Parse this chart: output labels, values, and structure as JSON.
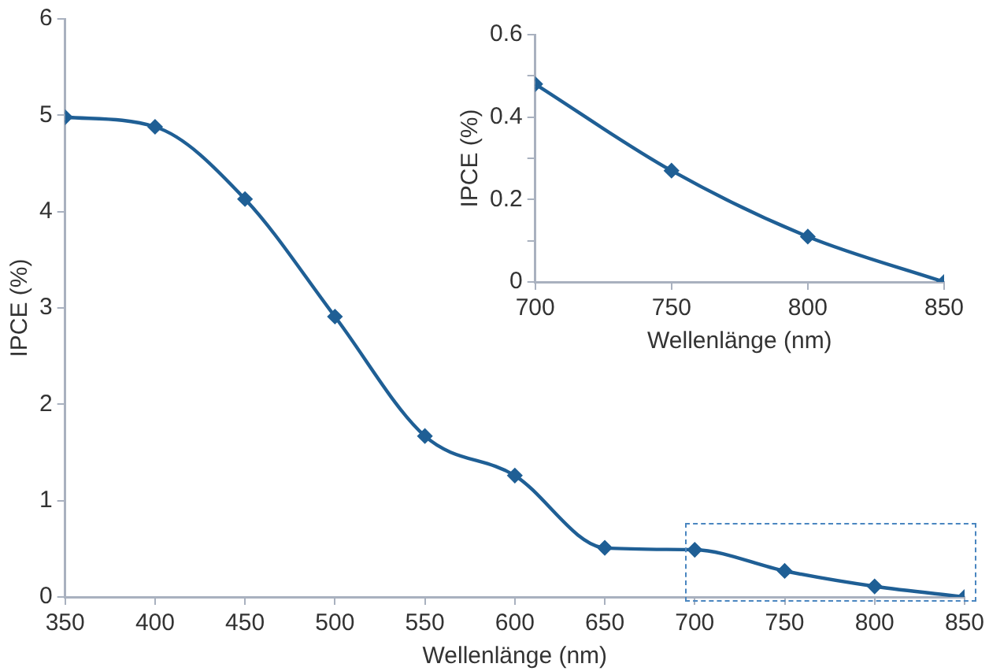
{
  "chart_data": [
    {
      "type": "line",
      "xlabel": "Wellenlänge (nm)",
      "ylabel": "IPCE (%)",
      "x": [
        350,
        400,
        450,
        500,
        550,
        600,
        650,
        700,
        750,
        800,
        850
      ],
      "xlim": [
        350,
        850
      ],
      "xticks": [
        350,
        400,
        450,
        500,
        550,
        600,
        650,
        700,
        750,
        800,
        850
      ],
      "ylim": [
        0,
        6
      ],
      "yticks": [
        0,
        1,
        2,
        3,
        4,
        5,
        6
      ],
      "marker": "diamond",
      "series": [
        {
          "color": "#1f5f95",
          "values": [
            4.98,
            4.88,
            4.13,
            2.91,
            1.67,
            1.26,
            0.51,
            0.49,
            0.27,
            0.11,
            0
          ]
        }
      ]
    },
    {
      "type": "line",
      "xlabel": "Wellenlänge (nm)",
      "ylabel": "IPCE (%)",
      "x": [
        700,
        750,
        800,
        850
      ],
      "xlim": [
        700,
        850
      ],
      "xticks": [
        700,
        750,
        800,
        850
      ],
      "ylim": [
        0,
        0.6
      ],
      "yticks": [
        0,
        {
          "value": 0.1,
          "label": null
        },
        0.2,
        {
          "value": 0.3,
          "label": null
        },
        0.4,
        {
          "value": 0.5,
          "label": null
        },
        0.6
      ],
      "marker": "diamond",
      "series": [
        {
          "color": "#1f5f95",
          "values": [
            0.48,
            0.27,
            0.11,
            0
          ]
        }
      ]
    }
  ]
}
